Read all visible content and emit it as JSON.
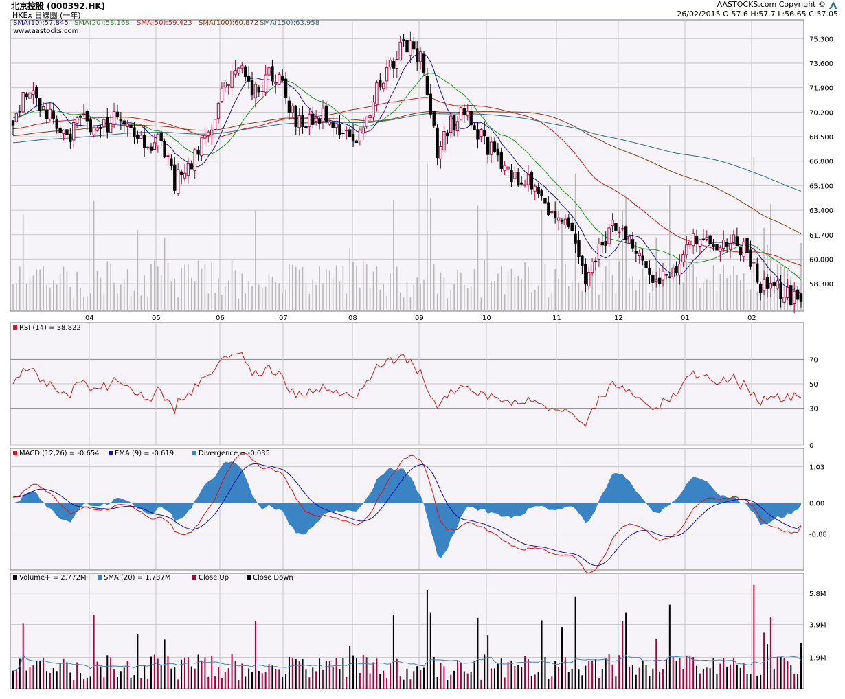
{
  "header": {
    "title": "北京控股 (000392.HK)",
    "subtitle": "HKEx 日線圖 (一年)",
    "copyright": "AASTOCKS.com Copyright ©",
    "ohlc": "26/02/2015   O:57.6  H:57.7  L:56.65  C:57.05",
    "website": "www.aastocks.com"
  },
  "colors": {
    "up": "#b0003c",
    "down": "#000000",
    "sma10": "#1a10a8",
    "sma20": "#1b9a1b",
    "sma50": "#d11d1d",
    "sma100": "#8b3a10",
    "sma150": "#2a7080",
    "rsi": "#d11d1d",
    "macd": "#e01010",
    "ema": "#1a10a8",
    "divergence": "#3a84c4",
    "volume_sma": "#3a84c4",
    "panel_bg": "#f6f4f8",
    "grid": "#c6c6c6"
  },
  "chart_data": [
    {
      "type": "candlestick",
      "title": "北京控股 (000392.HK)",
      "legend": [
        "SMA(10):57.845",
        "SMA(20):58.168",
        "SMA(50):59.423",
        "SMA(100):60.872",
        "SMA(150):63.958"
      ],
      "legend_placement": "top-left",
      "x_ticks": [
        "04",
        "05",
        "06",
        "07",
        "08",
        "09",
        "10",
        "11",
        "12",
        "01",
        "02"
      ],
      "y_ticks": [
        "75.300",
        "73.600",
        "71.900",
        "70.200",
        "68.500",
        "66.800",
        "65.100",
        "63.400",
        "61.700",
        "60.000",
        "58.300"
      ],
      "ylim": [
        56.4,
        76.6
      ],
      "grid": true,
      "close_anchors": [
        [
          0,
          69.3
        ],
        [
          4,
          71.8
        ],
        [
          8,
          70.4
        ],
        [
          12,
          70.0
        ],
        [
          16,
          68.4
        ],
        [
          20,
          69.9
        ],
        [
          24,
          69.0
        ],
        [
          28,
          69.4
        ],
        [
          32,
          69.8
        ],
        [
          36,
          69.0
        ],
        [
          40,
          67.2
        ],
        [
          44,
          68.3
        ],
        [
          48,
          65.4
        ],
        [
          52,
          66.1
        ],
        [
          56,
          67.9
        ],
        [
          60,
          70.1
        ],
        [
          64,
          72.3
        ],
        [
          68,
          72.8
        ],
        [
          72,
          71.6
        ],
        [
          76,
          72.9
        ],
        [
          80,
          72.2
        ],
        [
          84,
          69.3
        ],
        [
          88,
          69.7
        ],
        [
          92,
          70.0
        ],
        [
          96,
          69.5
        ],
        [
          100,
          68.1
        ],
        [
          104,
          69.3
        ],
        [
          108,
          71.9
        ],
        [
          112,
          73.2
        ],
        [
          116,
          74.9
        ],
        [
          119,
          74.7
        ],
        [
          122,
          73.5
        ],
        [
          126,
          67.4
        ],
        [
          130,
          69.3
        ],
        [
          134,
          70.3
        ],
        [
          138,
          68.9
        ],
        [
          142,
          67.5
        ],
        [
          146,
          66.4
        ],
        [
          150,
          65.6
        ],
        [
          154,
          65.2
        ],
        [
          158,
          63.8
        ],
        [
          162,
          63.0
        ],
        [
          166,
          61.5
        ],
        [
          170,
          58.7
        ],
        [
          174,
          61.0
        ],
        [
          178,
          62.2
        ],
        [
          182,
          61.9
        ],
        [
          186,
          60.5
        ],
        [
          190,
          59.0
        ],
        [
          194,
          58.7
        ],
        [
          198,
          59.8
        ],
        [
          202,
          61.3
        ],
        [
          206,
          61.2
        ],
        [
          210,
          60.8
        ],
        [
          214,
          61.5
        ],
        [
          218,
          60.3
        ],
        [
          222,
          58.2
        ],
        [
          226,
          58.0
        ],
        [
          230,
          57.6
        ],
        [
          234,
          57.05
        ]
      ],
      "sma_final": {
        "SMA(10)": 57.845,
        "SMA(20)": 58.168,
        "SMA(50)": 59.423,
        "SMA(100)": 60.872,
        "SMA(150)": 63.958
      }
    },
    {
      "type": "line",
      "legend": [
        "RSI (14) = 38.822"
      ],
      "y_ticks": [
        "70",
        "50",
        "30",
        "0"
      ],
      "ylim": [
        0,
        100
      ],
      "reference_lines": [
        70,
        30
      ],
      "series": [
        {
          "name": "RSI (14)",
          "final": 38.822
        }
      ]
    },
    {
      "type": "line",
      "legend": [
        "MACD (12,26) = -0.654",
        "EMA (9) = -0.619",
        "Divergence = -0.035"
      ],
      "y_ticks": [
        "1.03",
        "0.00",
        "-0.88"
      ],
      "ylim": [
        -1.9,
        1.55
      ],
      "series": [
        {
          "name": "MACD (12,26)",
          "final": -0.654
        },
        {
          "name": "EMA (9)",
          "final": -0.619
        },
        {
          "name": "Divergence",
          "final": -0.035
        }
      ]
    },
    {
      "type": "bar",
      "legend": [
        "Volume+ = 2.772M",
        "SMA (20) = 1.737M",
        "Close Up",
        "Close Down"
      ],
      "y_ticks": [
        "5.8M",
        "3.9M",
        "1.9M"
      ],
      "ylim": [
        0,
        7.0
      ],
      "unit": "M shares",
      "series": [
        {
          "name": "Volume+",
          "final": 2.772
        },
        {
          "name": "SMA (20)",
          "final": 1.737
        }
      ]
    }
  ]
}
